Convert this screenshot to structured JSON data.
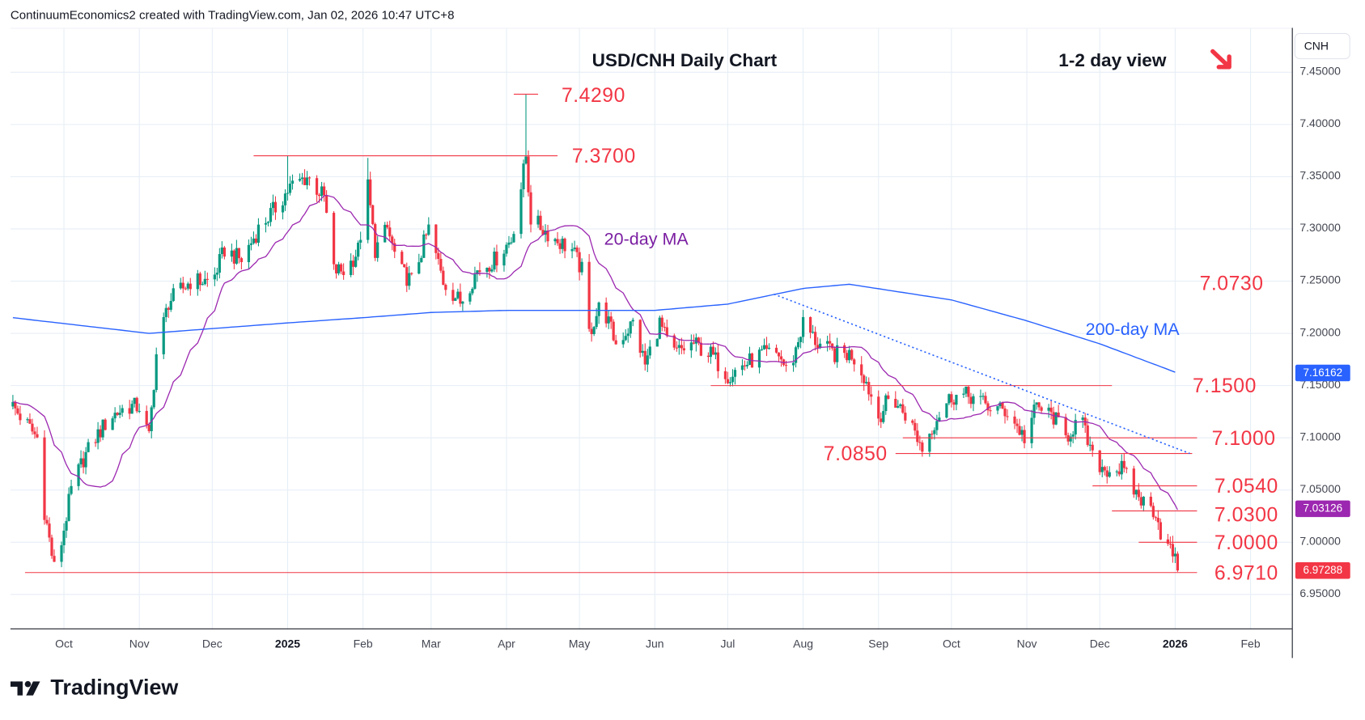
{
  "header": {
    "attribution": "ContinuumEconomics2 created with TradingView.com, Jan 02, 2026 10:47 UTC+8"
  },
  "logo": {
    "text": "TradingView"
  },
  "colors": {
    "up": "#089981",
    "down": "#f23645",
    "ma20": "#9c27b0",
    "ma200": "#2962ff",
    "level": "#f23645",
    "grid": "#e6eef5"
  },
  "chart_data": {
    "type": "candlestick",
    "title": "USD/CNH Daily Chart",
    "view_label": "1-2 day view",
    "view_direction": "down",
    "currency": "CNH",
    "ylim": [
      6.92,
      7.475
    ],
    "y_ticks": [
      "7.45000",
      "7.40000",
      "7.35000",
      "7.30000",
      "7.25000",
      "7.20000",
      "7.15000",
      "7.10000",
      "7.05000",
      "7.00000",
      "6.95000"
    ],
    "y_tick_values": [
      7.45,
      7.4,
      7.35,
      7.3,
      7.25,
      7.2,
      7.15,
      7.1,
      7.05,
      7.0,
      6.95
    ],
    "x_range": [
      "2024-09-09",
      "2026-02-18"
    ],
    "x_ticks": [
      {
        "label": "Oct",
        "date": "2024-10-01"
      },
      {
        "label": "Nov",
        "date": "2024-11-01"
      },
      {
        "label": "Dec",
        "date": "2024-12-01"
      },
      {
        "label": "2025",
        "date": "2025-01-01",
        "bold": true
      },
      {
        "label": "Feb",
        "date": "2025-02-01"
      },
      {
        "label": "Mar",
        "date": "2025-03-01"
      },
      {
        "label": "Apr",
        "date": "2025-04-01"
      },
      {
        "label": "May",
        "date": "2025-05-01"
      },
      {
        "label": "Jun",
        "date": "2025-06-01"
      },
      {
        "label": "Jul",
        "date": "2025-07-01"
      },
      {
        "label": "Aug",
        "date": "2025-08-01"
      },
      {
        "label": "Sep",
        "date": "2025-09-01"
      },
      {
        "label": "Oct",
        "date": "2025-10-01"
      },
      {
        "label": "Nov",
        "date": "2025-11-01"
      },
      {
        "label": "Dec",
        "date": "2025-12-01"
      },
      {
        "label": "2026",
        "date": "2026-01-01",
        "bold": true
      },
      {
        "label": "Feb",
        "date": "2026-02-01"
      }
    ],
    "close_anchors": [
      [
        "2024-09-10",
        7.13
      ],
      [
        "2024-09-20",
        7.1
      ],
      [
        "2024-09-23",
        7.03
      ],
      [
        "2024-09-27",
        6.975
      ],
      [
        "2024-09-30",
        7.0
      ],
      [
        "2024-10-04",
        7.05
      ],
      [
        "2024-10-09",
        7.08
      ],
      [
        "2024-10-14",
        7.1
      ],
      [
        "2024-10-20",
        7.12
      ],
      [
        "2024-10-27",
        7.13
      ],
      [
        "2024-11-01",
        7.13
      ],
      [
        "2024-11-05",
        7.1
      ],
      [
        "2024-11-08",
        7.18
      ],
      [
        "2024-11-13",
        7.23
      ],
      [
        "2024-11-22",
        7.25
      ],
      [
        "2024-12-01",
        7.25
      ],
      [
        "2024-12-06",
        7.28
      ],
      [
        "2024-12-13",
        7.27
      ],
      [
        "2024-12-20",
        7.3
      ],
      [
        "2024-12-27",
        7.32
      ],
      [
        "2025-01-02",
        7.34
      ],
      [
        "2025-01-09",
        7.35
      ],
      [
        "2025-01-16",
        7.33
      ],
      [
        "2025-01-20",
        7.26
      ],
      [
        "2025-01-25",
        7.26
      ],
      [
        "2025-01-30",
        7.28
      ],
      [
        "2025-02-03",
        7.34
      ],
      [
        "2025-02-06",
        7.28
      ],
      [
        "2025-02-11",
        7.3
      ],
      [
        "2025-02-16",
        7.26
      ],
      [
        "2025-02-21",
        7.25
      ],
      [
        "2025-02-28",
        7.3
      ],
      [
        "2025-03-06",
        7.25
      ],
      [
        "2025-03-13",
        7.23
      ],
      [
        "2025-03-20",
        7.26
      ],
      [
        "2025-03-27",
        7.27
      ],
      [
        "2025-04-03",
        7.29
      ],
      [
        "2025-04-07",
        7.34
      ],
      [
        "2025-04-09",
        7.37
      ],
      [
        "2025-04-11",
        7.31
      ],
      [
        "2025-04-16",
        7.3
      ],
      [
        "2025-04-21",
        7.29
      ],
      [
        "2025-04-28",
        7.28
      ],
      [
        "2025-05-02",
        7.26
      ],
      [
        "2025-05-05",
        7.2
      ],
      [
        "2025-05-10",
        7.23
      ],
      [
        "2025-05-16",
        7.19
      ],
      [
        "2025-05-23",
        7.21
      ],
      [
        "2025-05-28",
        7.17
      ],
      [
        "2025-06-03",
        7.21
      ],
      [
        "2025-06-08",
        7.18
      ],
      [
        "2025-06-17",
        7.19
      ],
      [
        "2025-06-24",
        7.18
      ],
      [
        "2025-07-01",
        7.16
      ],
      [
        "2025-07-08",
        7.17
      ],
      [
        "2025-07-15",
        7.18
      ],
      [
        "2025-07-22",
        7.18
      ],
      [
        "2025-07-26",
        7.16
      ],
      [
        "2025-08-01",
        7.21
      ],
      [
        "2025-08-07",
        7.19
      ],
      [
        "2025-08-14",
        7.18
      ],
      [
        "2025-08-21",
        7.18
      ],
      [
        "2025-08-26",
        7.16
      ],
      [
        "2025-09-01",
        7.12
      ],
      [
        "2025-09-06",
        7.14
      ],
      [
        "2025-09-13",
        7.12
      ],
      [
        "2025-09-19",
        7.09
      ],
      [
        "2025-09-25",
        7.12
      ],
      [
        "2025-10-01",
        7.14
      ],
      [
        "2025-10-09",
        7.14
      ],
      [
        "2025-10-16",
        7.13
      ],
      [
        "2025-10-24",
        7.125
      ],
      [
        "2025-10-31",
        7.1
      ],
      [
        "2025-11-05",
        7.13
      ],
      [
        "2025-11-12",
        7.12
      ],
      [
        "2025-11-17",
        7.1
      ],
      [
        "2025-11-23",
        7.12
      ],
      [
        "2025-11-28",
        7.08
      ],
      [
        "2025-12-03",
        7.07
      ],
      [
        "2025-12-10",
        7.07
      ],
      [
        "2025-12-15",
        7.05
      ],
      [
        "2025-12-20",
        7.035
      ],
      [
        "2025-12-24",
        7.03
      ],
      [
        "2025-12-27",
        7.0
      ],
      [
        "2025-12-31",
        6.99
      ],
      [
        "2026-01-02",
        6.973
      ]
    ],
    "spike_highs": [
      [
        "2025-04-09",
        7.429
      ],
      [
        "2025-02-03",
        7.368
      ],
      [
        "2025-01-01",
        7.37
      ]
    ],
    "ma200_anchors": [
      [
        "2024-09-10",
        7.215
      ],
      [
        "2024-11-05",
        7.2
      ],
      [
        "2025-01-01",
        7.21
      ],
      [
        "2025-02-01",
        7.215
      ],
      [
        "2025-03-01",
        7.22
      ],
      [
        "2025-04-01",
        7.222
      ],
      [
        "2025-06-01",
        7.222
      ],
      [
        "2025-07-01",
        7.228
      ],
      [
        "2025-08-01",
        7.243
      ],
      [
        "2025-08-20",
        7.247
      ],
      [
        "2025-10-01",
        7.232
      ],
      [
        "2025-11-01",
        7.212
      ],
      [
        "2025-12-01",
        7.19
      ],
      [
        "2026-01-02",
        7.162
      ]
    ],
    "ma20_label": "20-day MA",
    "ma200_label": "200-day MA",
    "levels": [
      {
        "label": "7.4290",
        "value": 7.429,
        "from": "2025-04-04",
        "to": "2025-04-14"
      },
      {
        "label": "7.3700",
        "value": 7.37,
        "from": "2024-12-18",
        "to": "2025-04-22"
      },
      {
        "label": "7.1500",
        "value": 7.15,
        "from": "2025-06-24",
        "to": "2025-12-06"
      },
      {
        "label": "7.1000",
        "value": 7.1,
        "from": "2025-09-11",
        "to": "2026-01-10"
      },
      {
        "label": "7.0850",
        "value": 7.085,
        "from": "2025-09-08",
        "to": "2026-01-08"
      },
      {
        "label": "7.0540",
        "value": 7.054,
        "from": "2025-11-28",
        "to": "2026-01-10"
      },
      {
        "label": "7.0300",
        "value": 7.03,
        "from": "2025-12-06",
        "to": "2026-01-10"
      },
      {
        "label": "7.0000",
        "value": 7.0,
        "from": "2025-12-17",
        "to": "2026-01-10"
      },
      {
        "label": "6.9710",
        "value": 6.971,
        "from": "2024-09-15",
        "to": "2026-01-10"
      },
      {
        "label": "7.0730",
        "value": 7.073
      }
    ],
    "trendline": {
      "from": [
        "2025-07-20",
        7.2375
      ],
      "to": [
        "2026-01-07",
        7.085
      ]
    },
    "price_badges": [
      {
        "label": "7.16162",
        "value": 7.16162,
        "color": "#2962ff"
      },
      {
        "label": "7.03126",
        "value": 7.03126,
        "color": "#9c27b0"
      },
      {
        "label": "6.97288",
        "value": 6.97288,
        "color": "#f23645"
      }
    ]
  }
}
